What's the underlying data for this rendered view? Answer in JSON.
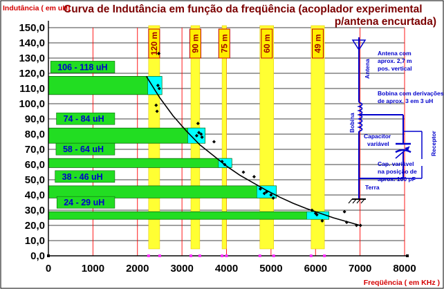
{
  "chart_data": {
    "type": "scatter",
    "title_line1": "Curva de Indutância em função da freqüência (acoplador experimental",
    "title_line2": "p/antena encurtada)",
    "ylabel": "Indutância  ( em uH)",
    "xlabel": "Freqüência  ( em KHz )",
    "xlim": [
      0,
      8000
    ],
    "ylim": [
      0,
      150
    ],
    "x_ticks": [
      0,
      1000,
      2000,
      3000,
      4000,
      5000,
      6000,
      7000,
      8000
    ],
    "x_tick_labels": [
      "0",
      "1000",
      "2000",
      "3000",
      "4000",
      "5000",
      "6000",
      "7000",
      "8000"
    ],
    "y_ticks": [
      0,
      10,
      20,
      30,
      40,
      50,
      60,
      70,
      80,
      90,
      100,
      110,
      120,
      130,
      140,
      150
    ],
    "y_tick_labels": [
      "0,0",
      "10,0",
      "20,0",
      "30,0",
      "40,0",
      "50,0",
      "60,0",
      "70,0",
      "80,0",
      "90,0",
      "100,0",
      "110,0",
      "120,0",
      "130,0",
      "140,0",
      "150,0"
    ],
    "grid": true,
    "bands": [
      {
        "label": "120 m",
        "x_start": 2250,
        "x_end": 2500
      },
      {
        "label": "90 m",
        "x_start": 3200,
        "x_end": 3400
      },
      {
        "label": "75 m",
        "x_start": 3900,
        "x_end": 4000
      },
      {
        "label": "60 m",
        "x_start": 4750,
        "x_end": 5060
      },
      {
        "label": "49 m",
        "x_start": 5900,
        "x_end": 6200
      }
    ],
    "ranges": [
      {
        "label": "106  -  118  uH",
        "y_low": 106,
        "y_high": 118,
        "x_end": 2550,
        "cyan_start": 2230,
        "label_x_start": 50,
        "label_x_end": 1490
      },
      {
        "label": "74  -  84  uH",
        "y_low": 74,
        "y_high": 84,
        "x_end": 3520,
        "cyan_start": 3130,
        "label_x_start": 180,
        "label_x_end": 1490
      },
      {
        "label": "58  -  64  uH",
        "y_low": 58,
        "y_high": 64,
        "x_end": 4120,
        "cyan_start": 3820,
        "label_x_start": 170,
        "label_x_end": 1490
      },
      {
        "label": "38  -  46  uH",
        "y_low": 38,
        "y_high": 46,
        "x_end": 5120,
        "cyan_start": 4680,
        "label_x_start": 150,
        "label_x_end": 1490
      },
      {
        "label": "24  -  29  uH",
        "y_low": 24,
        "y_high": 29,
        "x_end": 6300,
        "cyan_start": 5800,
        "label_x_start": 190,
        "label_x_end": 1490
      }
    ],
    "points": [
      [
        2480,
        133
      ],
      [
        2460,
        112
      ],
      [
        2490,
        110
      ],
      [
        2420,
        99
      ],
      [
        2440,
        95
      ],
      [
        3360,
        87
      ],
      [
        3380,
        81
      ],
      [
        3430,
        80
      ],
      [
        3450,
        78
      ],
      [
        3330,
        79
      ],
      [
        3720,
        75
      ],
      [
        3900,
        62
      ],
      [
        3960,
        60
      ],
      [
        4380,
        55
      ],
      [
        4620,
        52
      ],
      [
        4850,
        41
      ],
      [
        4900,
        42
      ],
      [
        5000,
        40
      ],
      [
        5050,
        38
      ],
      [
        4760,
        44
      ],
      [
        5920,
        30
      ],
      [
        6000,
        28
      ],
      [
        6030,
        27
      ],
      [
        6150,
        23
      ],
      [
        6650,
        29
      ],
      [
        6700,
        22
      ],
      [
        6920,
        20
      ],
      [
        7010,
        20
      ]
    ],
    "curve": [
      [
        2200,
        118
      ],
      [
        2500,
        104
      ],
      [
        2800,
        92
      ],
      [
        3100,
        82
      ],
      [
        3400,
        73
      ],
      [
        3700,
        66
      ],
      [
        4000,
        59
      ],
      [
        4300,
        53
      ],
      [
        4600,
        48
      ],
      [
        4900,
        43
      ],
      [
        5200,
        38.5
      ],
      [
        5500,
        34.5
      ],
      [
        5800,
        31
      ],
      [
        6100,
        28
      ],
      [
        6400,
        25
      ],
      [
        6700,
        22.5
      ],
      [
        7000,
        20
      ]
    ],
    "x_markers": [
      2250,
      2500,
      3200,
      3400,
      3900,
      4000,
      4750,
      5060,
      5900,
      6200
    ],
    "colors": {
      "title": "#7b0000",
      "axis_label": "#d40000",
      "band_fill": "#ffff33",
      "range_fill": "#22dd22",
      "range_cyan": "#00ffff",
      "range_text": "#0000cc",
      "grid_vertical": "#ff0000",
      "grid_horizontal": "#000000",
      "diagram": "#0000cc",
      "marker": "#ff33ff"
    }
  },
  "diagram": {
    "antena_desc": [
      "Antena com",
      "aprox. 2,7 m",
      "pos. vertical"
    ],
    "antena": "Antena",
    "bobina_desc": [
      "Bobina com derivações",
      "de aprox.  3  em  3  uH"
    ],
    "bobina": "Bobina",
    "capacitor": [
      "Capacitor",
      "variável"
    ],
    "receptor": "Receptor",
    "cap_desc": [
      "Cap.  variável",
      "na posição de",
      "aprox. 100 pF"
    ],
    "terra": "Terra"
  }
}
